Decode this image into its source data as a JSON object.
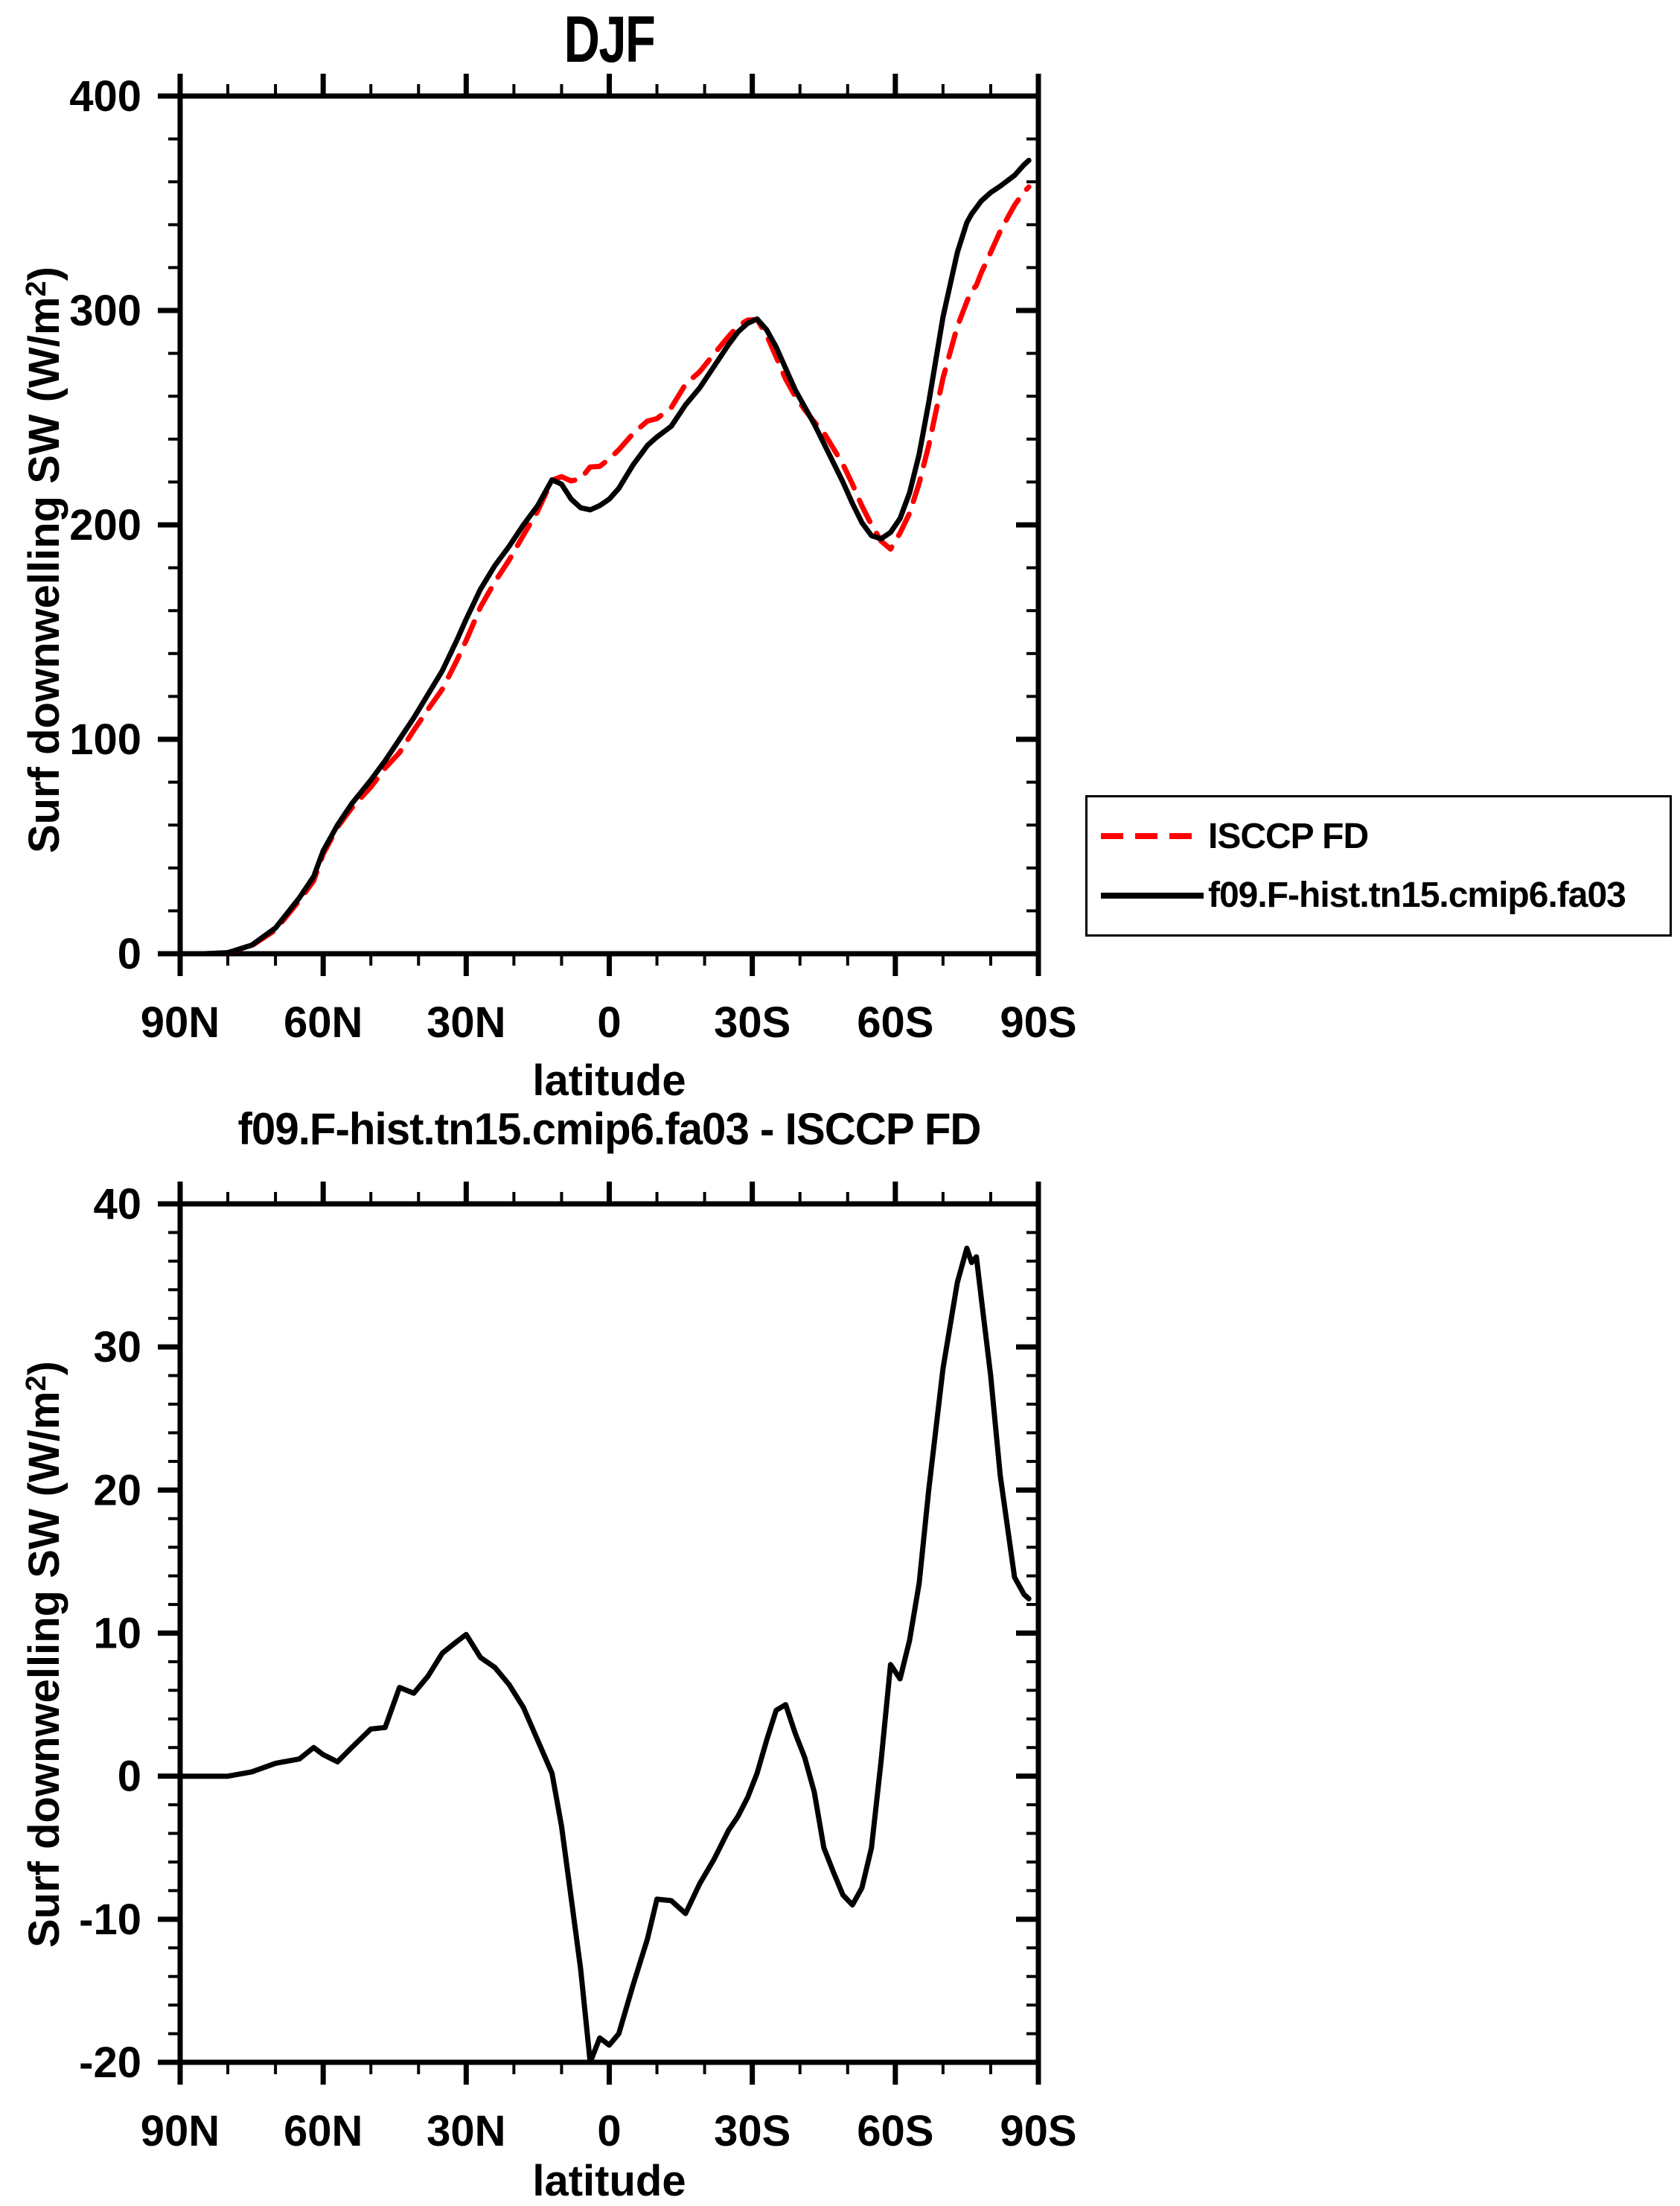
{
  "page": {
    "background": "#ffffff",
    "foreground": "#000000"
  },
  "legend": {
    "position": "outside-right-middle",
    "items": [
      {
        "label": "ISCCP FD",
        "color": "#ff0000",
        "style": "dashed"
      },
      {
        "label": "f09.F-hist.tn15.cmip6.fa03",
        "color": "#000000",
        "style": "solid"
      }
    ]
  },
  "chart_data": [
    {
      "type": "line",
      "title": "DJF",
      "xlabel": "latitude",
      "ylabel": "Surf downwelling SW (W/m2)",
      "ylabel_main": "Surf downwelling SW (W/m",
      "ylabel_sup": "2",
      "ylabel_close": ")",
      "xlim": [
        90,
        -90
      ],
      "ylim": [
        0,
        400
      ],
      "grid": false,
      "legend_position": "outside-right",
      "xticks": {
        "values": [
          90,
          60,
          30,
          0,
          -30,
          -60,
          -90
        ],
        "labels": [
          "90N",
          "60N",
          "30N",
          "0",
          "30S",
          "60S",
          "90S"
        ],
        "minor_step": 10
      },
      "yticks": {
        "values": [
          0,
          100,
          200,
          300,
          400
        ],
        "labels": [
          "0",
          "100",
          "200",
          "300",
          "400"
        ],
        "minor_step": 20
      },
      "x": [
        90,
        85,
        80,
        75,
        70,
        65,
        62,
        60,
        57,
        54,
        50,
        47,
        44,
        41,
        38,
        35,
        32,
        30,
        27,
        24,
        21,
        18,
        15,
        12,
        10,
        8,
        6,
        4,
        2,
        0,
        -2,
        -5,
        -8,
        -10,
        -13,
        -16,
        -19,
        -22,
        -25,
        -27,
        -29,
        -31,
        -33,
        -35,
        -37,
        -39,
        -41,
        -43,
        -45,
        -47,
        -49,
        -51,
        -53,
        -55,
        -57,
        -59,
        -61,
        -63,
        -65,
        -67,
        -70,
        -73,
        -75,
        -76,
        -77,
        -78,
        -80,
        -82,
        -85,
        -87,
        -88
      ],
      "series": [
        {
          "name": "ISCCP FD",
          "color": "#ff0000",
          "style": "dashed",
          "values": [
            0,
            0,
            0.5,
            3.7,
            11.1,
            24.8,
            34,
            46.5,
            59,
            68,
            77.7,
            86.6,
            93.8,
            104.2,
            114,
            123.4,
            136.6,
            146.1,
            161.7,
            173.4,
            183.6,
            195.2,
            206.5,
            220.8,
            222.5,
            220.5,
            221.5,
            227,
            227.3,
            230.8,
            235,
            242.6,
            248.4,
            249.6,
            254.7,
            265.6,
            271.5,
            279.8,
            287.8,
            292.8,
            295.5,
            295.8,
            288.5,
            278.4,
            268,
            260,
            253.7,
            248.1,
            243,
            235.7,
            228.3,
            219,
            208.8,
            200,
            192.5,
            188.7,
            196.2,
            205.5,
            219.5,
            237,
            268.5,
            292.5,
            304.1,
            309.1,
            311.7,
            317.5,
            327,
            337,
            349.1,
            355.3,
            357.6
          ]
        },
        {
          "name": "f09.F-hist.tn15.cmip6.fa03",
          "color": "#000000",
          "style": "solid",
          "values": [
            0,
            0,
            0.5,
            4,
            12,
            26,
            36,
            48,
            60,
            70,
            81,
            90,
            100,
            110,
            121,
            132,
            146,
            156,
            170,
            181,
            190,
            200,
            209,
            221,
            219,
            212,
            208,
            207,
            209,
            212,
            217,
            228,
            237,
            241,
            246,
            256,
            264,
            274,
            284,
            290,
            294,
            296,
            291,
            283,
            273,
            263,
            255,
            247,
            238,
            229,
            220,
            210,
            201,
            195,
            193.5,
            196.5,
            203,
            215,
            233,
            257,
            297,
            327,
            341,
            345,
            348,
            351,
            355,
            358,
            363,
            368,
            370
          ]
        }
      ]
    },
    {
      "type": "line",
      "title": "f09.F-hist.tn15.cmip6.fa03 - ISCCP FD",
      "xlabel": "latitude",
      "ylabel": "Surf downwelling SW (W/m2)",
      "ylabel_main": "Surf downwelling SW (W/m",
      "ylabel_sup": "2",
      "ylabel_close": ")",
      "xlim": [
        90,
        -90
      ],
      "ylim": [
        -20,
        40
      ],
      "grid": false,
      "legend_position": "none",
      "xticks": {
        "values": [
          90,
          60,
          30,
          0,
          -30,
          -60,
          -90
        ],
        "labels": [
          "90N",
          "60N",
          "30N",
          "0",
          "30S",
          "60S",
          "90S"
        ],
        "minor_step": 10
      },
      "yticks": {
        "values": [
          -20,
          -10,
          0,
          10,
          20,
          30,
          40
        ],
        "labels": [
          "-20",
          "-10",
          "0",
          "10",
          "20",
          "30",
          "40"
        ],
        "minor_step": 2
      },
      "x": [
        90,
        85,
        80,
        75,
        70,
        65,
        62,
        60,
        57,
        54,
        50,
        47,
        44,
        41,
        38,
        35,
        32,
        30,
        27,
        24,
        21,
        18,
        15,
        12,
        10,
        8,
        6,
        4,
        2,
        0,
        -2,
        -5,
        -8,
        -10,
        -13,
        -16,
        -19,
        -22,
        -25,
        -27,
        -29,
        -31,
        -33,
        -35,
        -37,
        -39,
        -41,
        -43,
        -45,
        -47,
        -49,
        -51,
        -53,
        -55,
        -57,
        -59,
        -61,
        -63,
        -65,
        -67,
        -70,
        -73,
        -75,
        -76,
        -77,
        -78,
        -80,
        -82,
        -85,
        -87,
        -88
      ],
      "series": [
        {
          "name": "f09.F-hist.tn15.cmip6.fa03 - ISCCP FD",
          "color": "#000000",
          "style": "solid",
          "values": [
            0,
            0,
            0,
            0.3,
            0.9,
            1.2,
            2,
            1.5,
            1,
            2,
            3.3,
            3.4,
            6.2,
            5.8,
            7,
            8.6,
            9.4,
            9.9,
            8.3,
            7.6,
            6.4,
            4.8,
            2.5,
            0.2,
            -3.5,
            -8.5,
            -13.5,
            -20,
            -18.3,
            -18.8,
            -18,
            -14.6,
            -11.4,
            -8.6,
            -8.7,
            -9.6,
            -7.5,
            -5.8,
            -3.8,
            -2.8,
            -1.5,
            0.2,
            2.5,
            4.6,
            5,
            3,
            1.3,
            -1.1,
            -5,
            -6.7,
            -8.3,
            -9,
            -7.8,
            -5,
            1,
            7.8,
            6.8,
            9.5,
            13.5,
            20,
            28.5,
            34.5,
            36.9,
            35.9,
            36.3,
            33.5,
            28,
            21,
            13.9,
            12.7,
            12.4
          ]
        }
      ]
    }
  ]
}
